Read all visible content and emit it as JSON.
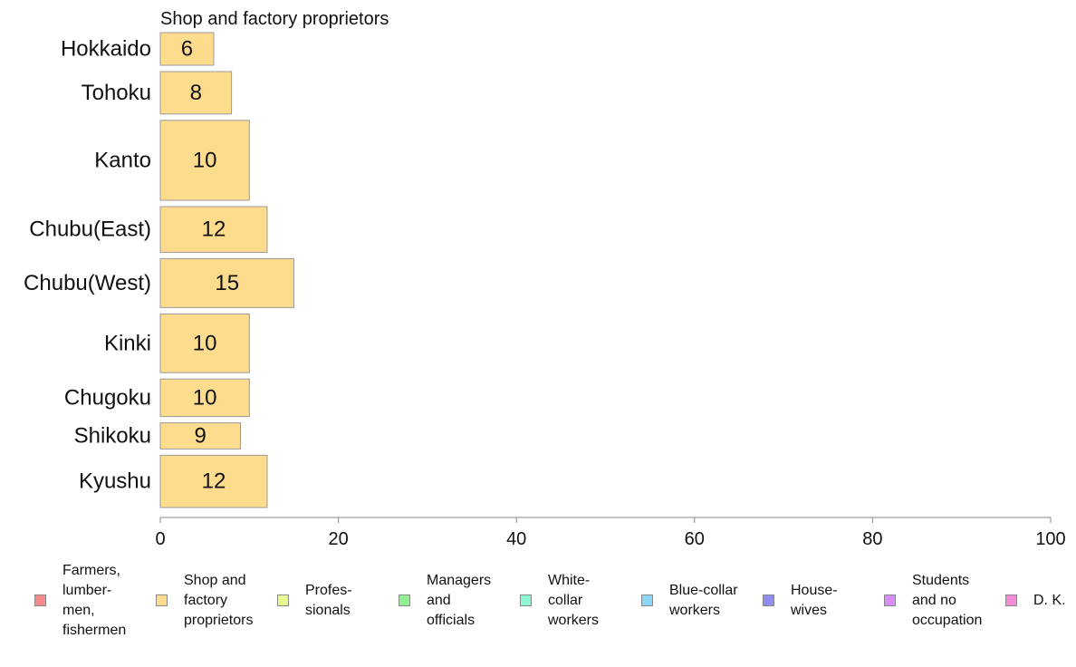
{
  "chart_data": {
    "type": "bar",
    "orientation": "horizontal",
    "title": "Shop and factory proprietors",
    "categories": [
      "Hokkaido",
      "Tohoku",
      "Kanto",
      "Chubu(East)",
      "Chubu(West)",
      "Kinki",
      "Chugoku",
      "Shikoku",
      "Kyushu"
    ],
    "relative_widths": [
      1.0,
      1.3,
      2.45,
      1.4,
      1.5,
      1.8,
      1.15,
      0.8,
      1.6
    ],
    "values": [
      6,
      8,
      10,
      12,
      15,
      10,
      10,
      9,
      12
    ],
    "xlim": [
      0,
      100
    ],
    "xticks": [
      0,
      20,
      40,
      60,
      80,
      100
    ],
    "bar_color": "#fddc8e",
    "bar_border_color": "#9a9a9a",
    "grid": false,
    "legend_placement": "bottom",
    "legend": [
      {
        "label": "Farmers,\nlumber-\nmen,\nfishermen",
        "color": "#f58b8b"
      },
      {
        "label": "Shop and\nfactory\nproprietors",
        "color": "#fddc8e"
      },
      {
        "label": "Profes-\nsionals",
        "color": "#e6f98d"
      },
      {
        "label": "Managers\nand\nofficials",
        "color": "#8ef08e"
      },
      {
        "label": "White-\ncollar\nworkers",
        "color": "#8ef7d5"
      },
      {
        "label": "Blue-collar\nworkers",
        "color": "#8ed6f7"
      },
      {
        "label": "House-\nwives",
        "color": "#8e8ef2"
      },
      {
        "label": "Students\nand no\noccupation",
        "color": "#d98ef7"
      },
      {
        "label": "D. K.",
        "color": "#f48bd9"
      }
    ]
  }
}
